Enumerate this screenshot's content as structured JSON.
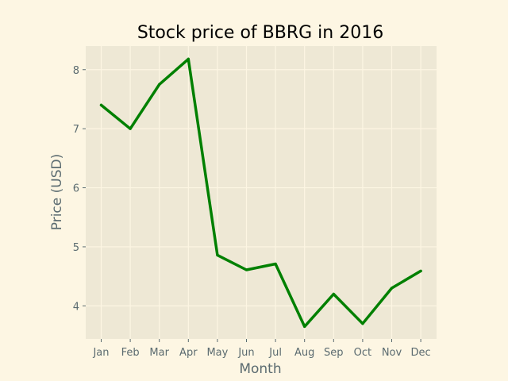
{
  "chart_data": {
    "type": "line",
    "title": "Stock price of BBRG in 2016",
    "xlabel": "Month",
    "ylabel": "Price (USD)",
    "categories": [
      "Jan",
      "Feb",
      "Mar",
      "Apr",
      "May",
      "Jun",
      "Jul",
      "Aug",
      "Sep",
      "Oct",
      "Nov",
      "Dec"
    ],
    "series": [
      {
        "values": [
          7.4,
          7.0,
          7.75,
          8.18,
          4.86,
          4.61,
          4.71,
          3.65,
          4.2,
          3.7,
          4.3,
          4.59
        ]
      }
    ],
    "yticks": [
      4,
      5,
      6,
      7,
      8
    ],
    "ylim": [
      3.44,
      8.4
    ],
    "grid": true,
    "legend": "none",
    "colors": {
      "line": "#008000",
      "plot_background": "#eee8d5",
      "figure_background": "#fdf6e3",
      "grid": "#fdf6e3",
      "tick_text": "#5b6b70"
    }
  }
}
